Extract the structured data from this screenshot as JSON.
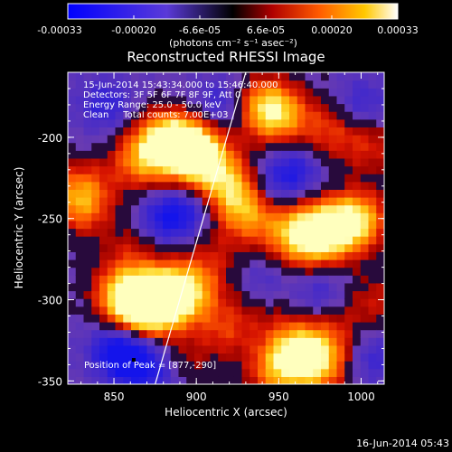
{
  "colorbar": {
    "tick_labels": [
      "-0.00033",
      "-0.00020",
      "-6.6e-05",
      "6.6e-05",
      "0.00020",
      "0.00033"
    ],
    "unit_label": "(photons cm⁻² s⁻¹ asec⁻²)",
    "range": [
      -0.00033,
      0.00033
    ]
  },
  "chart_data": {
    "type": "heatmap",
    "title": "Reconstructed RHESSI Image",
    "xlabel": "Heliocentric X (arcsec)",
    "ylabel": "Heliocentric Y (arcsec)",
    "xlim": [
      822,
      1014
    ],
    "ylim": [
      -352,
      -160
    ],
    "x_ticks": [
      850,
      900,
      950,
      1000
    ],
    "y_ticks": [
      -350,
      -300,
      -250,
      -200
    ],
    "annotations": [
      "15-Jun-2014 15:43:34.000 to 15:46:40.000",
      "Detectors: 3F 5F 6F 7F 8F 9F, Att 0",
      "Energy Range: 25.0 - 50.0 keV",
      "Clean     Total counts: 7.00E+03",
      "Position of Peak = [877,-290]"
    ],
    "peak_position": [
      877,
      -290
    ],
    "limb_line": [
      [
        875,
        -352
      ],
      [
        930,
        -160
      ]
    ],
    "blobs": [
      {
        "x": 868,
        "y": -305,
        "level": 1.0
      },
      {
        "x": 880,
        "y": -298,
        "level": 0.95
      },
      {
        "x": 855,
        "y": -296,
        "level": 0.8
      },
      {
        "x": 895,
        "y": -295,
        "level": 0.75
      },
      {
        "x": 895,
        "y": -205,
        "level": 0.95
      },
      {
        "x": 880,
        "y": -202,
        "level": 0.85
      },
      {
        "x": 905,
        "y": -215,
        "level": 0.8
      },
      {
        "x": 865,
        "y": -215,
        "level": 0.6
      },
      {
        "x": 922,
        "y": -232,
        "level": 0.75
      },
      {
        "x": 932,
        "y": -248,
        "level": 0.6
      },
      {
        "x": 950,
        "y": -186,
        "level": 0.7
      },
      {
        "x": 940,
        "y": -180,
        "level": 0.6
      },
      {
        "x": 985,
        "y": -255,
        "level": 0.85
      },
      {
        "x": 970,
        "y": -262,
        "level": 0.75
      },
      {
        "x": 1000,
        "y": -250,
        "level": 0.7
      },
      {
        "x": 958,
        "y": -258,
        "level": 0.55
      },
      {
        "x": 960,
        "y": -330,
        "level": 0.85
      },
      {
        "x": 975,
        "y": -340,
        "level": 0.75
      },
      {
        "x": 948,
        "y": -345,
        "level": 0.6
      },
      {
        "x": 830,
        "y": -232,
        "level": 0.55
      },
      {
        "x": 830,
        "y": -244,
        "level": 0.45
      },
      {
        "x": 980,
        "y": -195,
        "level": 0.45
      },
      {
        "x": 1005,
        "y": -205,
        "level": 0.4
      },
      {
        "x": 918,
        "y": -318,
        "level": 0.45
      },
      {
        "x": 890,
        "y": -340,
        "level": 0.35
      },
      {
        "x": 910,
        "y": -275,
        "level": 0.3
      },
      {
        "x": 860,
        "y": -268,
        "level": 0.3
      },
      {
        "x": 1008,
        "y": -300,
        "level": 0.35
      },
      {
        "x": 940,
        "y": -300,
        "level": 0.25
      },
      {
        "x": 985,
        "y": -320,
        "level": 0.3
      }
    ],
    "dips": [
      {
        "x": 862,
        "y": -337,
        "level": -0.75
      },
      {
        "x": 850,
        "y": -330,
        "level": -0.5
      },
      {
        "x": 880,
        "y": -345,
        "level": -0.4
      },
      {
        "x": 880,
        "y": -250,
        "level": -0.5
      },
      {
        "x": 895,
        "y": -245,
        "level": -0.4
      },
      {
        "x": 960,
        "y": -220,
        "level": -0.45
      },
      {
        "x": 945,
        "y": -230,
        "level": -0.35
      },
      {
        "x": 845,
        "y": -180,
        "level": -0.4
      },
      {
        "x": 915,
        "y": -180,
        "level": -0.4
      },
      {
        "x": 940,
        "y": -290,
        "level": -0.35
      },
      {
        "x": 1005,
        "y": -335,
        "level": -0.35
      },
      {
        "x": 1000,
        "y": -180,
        "level": -0.35
      },
      {
        "x": 975,
        "y": -295,
        "level": -0.3
      }
    ]
  },
  "footer": {
    "timestamp": "16-Jun-2014 05:43"
  }
}
